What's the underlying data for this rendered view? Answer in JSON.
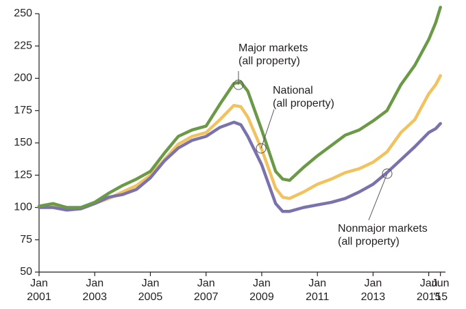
{
  "chart_data": {
    "type": "line",
    "x": [
      2001,
      2001.5,
      2002,
      2002.5,
      2003,
      2003.5,
      2004,
      2004.5,
      2005,
      2005.5,
      2006,
      2006.5,
      2007,
      2007.5,
      2008,
      2008.25,
      2008.5,
      2009,
      2009.5,
      2009.75,
      2010,
      2010.5,
      2011,
      2011.5,
      2012,
      2012.5,
      2013,
      2013.5,
      2014,
      2014.5,
      2015,
      2015.25,
      2015.42
    ],
    "series": [
      {
        "name": "Major markets (all property)",
        "color": "#6b9a47",
        "values": [
          101,
          103,
          100,
          100,
          104,
          111,
          117,
          122,
          128,
          142,
          155,
          160,
          163,
          180,
          196,
          197,
          190,
          160,
          128,
          122,
          121,
          131,
          140,
          148,
          156,
          160,
          167,
          175,
          195,
          210,
          230,
          243,
          255
        ]
      },
      {
        "name": "National (all property)",
        "color": "#f1c25e",
        "values": [
          100,
          101,
          100,
          99,
          103,
          107,
          112,
          117,
          125,
          137,
          149,
          155,
          158,
          168,
          179,
          178,
          170,
          145,
          115,
          108,
          107,
          112,
          118,
          122,
          127,
          130,
          135,
          143,
          158,
          168,
          188,
          195,
          202
        ]
      },
      {
        "name": "Nonmajor markets (all property)",
        "color": "#7a72ad",
        "values": [
          100,
          100,
          98,
          99,
          103,
          108,
          110,
          114,
          123,
          136,
          146,
          152,
          155,
          162,
          166,
          164,
          155,
          133,
          103,
          97,
          97,
          100,
          102,
          104,
          107,
          112,
          118,
          127,
          137,
          147,
          158,
          161,
          165
        ]
      }
    ],
    "annotations": [
      {
        "text": [
          "Major markets",
          "(all property)"
        ]
      },
      {
        "text": [
          "National",
          "(all property)"
        ]
      },
      {
        "text": [
          "Nonmajor markets",
          "(all property)"
        ]
      }
    ],
    "xlim": [
      2001,
      2015.6
    ],
    "xticks": [
      {
        "value": 2001,
        "label": [
          "Jan",
          "2001"
        ]
      },
      {
        "value": 2003,
        "label": [
          "Jan",
          "2003"
        ]
      },
      {
        "value": 2005,
        "label": [
          "Jan",
          "2005"
        ]
      },
      {
        "value": 2007,
        "label": [
          "Jan",
          "2007"
        ]
      },
      {
        "value": 2009,
        "label": [
          "Jan",
          "2009"
        ]
      },
      {
        "value": 2011,
        "label": [
          "Jan",
          "2011"
        ]
      },
      {
        "value": 2013,
        "label": [
          "Jan",
          "2013"
        ]
      },
      {
        "value": 2015,
        "label": [
          "Jan",
          "2015"
        ]
      },
      {
        "value": 2015.42,
        "label": [
          "Jun",
          "'15"
        ]
      }
    ],
    "ylim": [
      50,
      250
    ],
    "yticks": [
      50,
      75,
      100,
      125,
      150,
      175,
      200,
      225,
      250
    ],
    "grid": false
  }
}
